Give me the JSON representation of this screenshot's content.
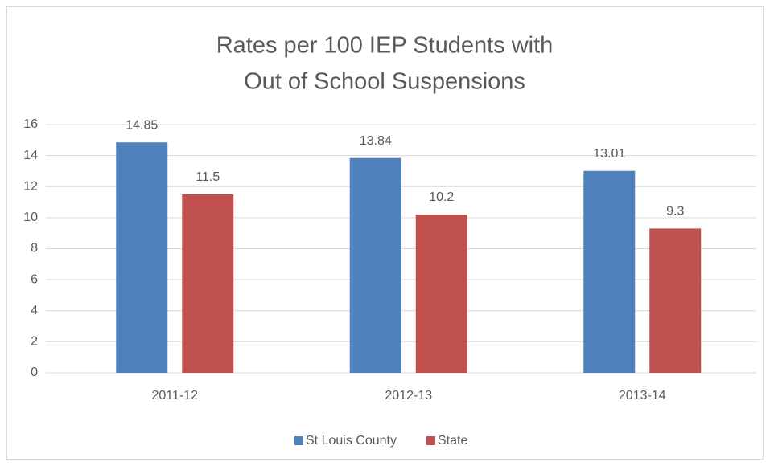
{
  "chart_data": {
    "type": "bar",
    "title": [
      "Rates per 100 IEP Students with",
      "Out of School Suspensions"
    ],
    "categories": [
      "2011-12",
      "2012-13",
      "2013-14"
    ],
    "series": [
      {
        "name": "St Louis County",
        "color": "#4f81bd",
        "values": [
          14.85,
          13.84,
          13.01
        ]
      },
      {
        "name": "State",
        "color": "#c0504d",
        "values": [
          11.5,
          10.2,
          9.3
        ]
      }
    ],
    "ylim": [
      0,
      16
    ],
    "yticks": [
      0,
      2,
      4,
      6,
      8,
      10,
      12,
      14,
      16
    ],
    "grid": true,
    "legend": "bottom"
  }
}
